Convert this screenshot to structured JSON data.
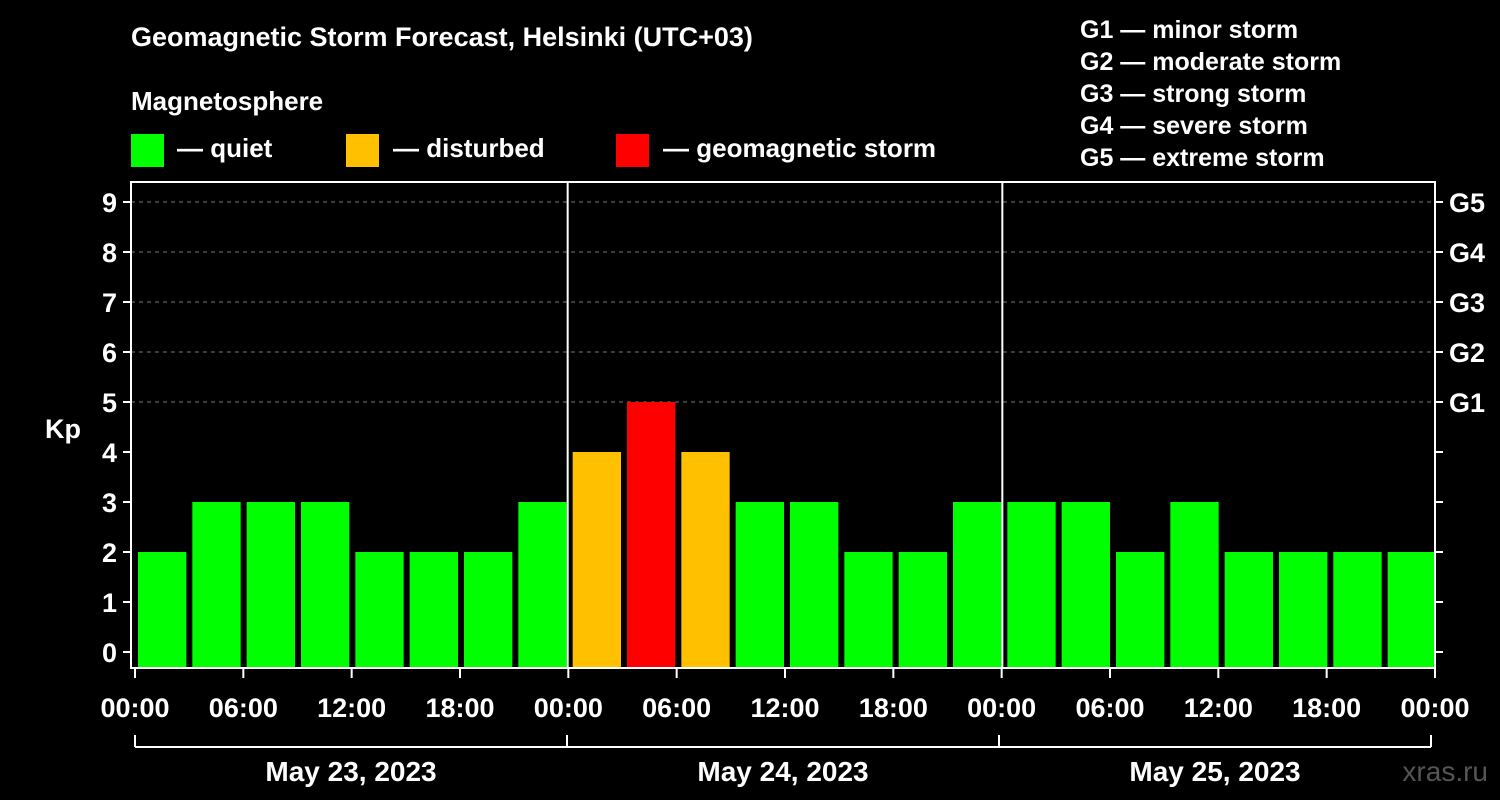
{
  "title": "Geomagnetic Storm Forecast, Helsinki (UTC+03)",
  "subtitle": "Magnetosphere",
  "legend": [
    {
      "label": "— quiet",
      "color": "#00ff00"
    },
    {
      "label": "— disturbed",
      "color": "#ffc000"
    },
    {
      "label": "— geomagnetic storm",
      "color": "#ff0000"
    }
  ],
  "storm_scale": [
    "G1 — minor storm",
    "G2 — moderate storm",
    "G3 — strong storm",
    "G4 — severe storm",
    "G5 — extreme storm"
  ],
  "watermark": "xras.ru",
  "chart_data": {
    "type": "bar",
    "ylabel": "Kp",
    "ylim": [
      0,
      9
    ],
    "yticks": [
      0,
      1,
      2,
      3,
      4,
      5,
      6,
      7,
      8,
      9
    ],
    "right_labels": [
      {
        "kp": 5,
        "label": "G1"
      },
      {
        "kp": 6,
        "label": "G2"
      },
      {
        "kp": 7,
        "label": "G3"
      },
      {
        "kp": 8,
        "label": "G4"
      },
      {
        "kp": 9,
        "label": "G5"
      }
    ],
    "grid": true,
    "xtick_labels": [
      "00:00",
      "06:00",
      "12:00",
      "18:00",
      "00:00",
      "06:00",
      "12:00",
      "18:00",
      "00:00",
      "06:00",
      "12:00",
      "18:00",
      "00:00"
    ],
    "days": [
      "May 23, 2023",
      "May 24, 2023",
      "May 25, 2023"
    ],
    "interval_hours": 3,
    "values": [
      2,
      3,
      3,
      3,
      2,
      2,
      2,
      3,
      4,
      5,
      4,
      3,
      3,
      2,
      2,
      3,
      3,
      3,
      2,
      3,
      2,
      2,
      2,
      2
    ],
    "colors": {
      "quiet": "#00ff00",
      "disturbed": "#ffc000",
      "storm": "#ff0000"
    }
  }
}
